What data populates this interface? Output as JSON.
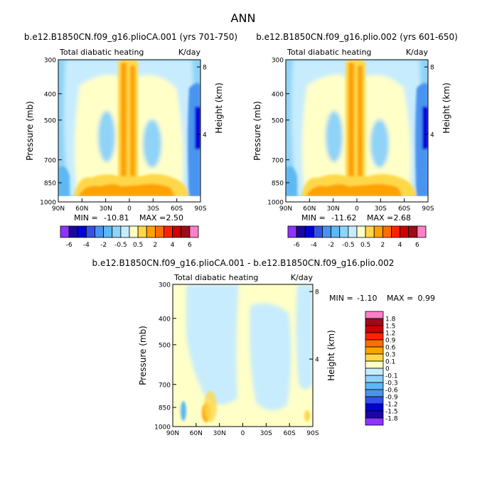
{
  "figure": {
    "title": "ANN"
  },
  "colors": {
    "levels_main": [
      "#8f33ff",
      "#1a06a0",
      "#0000d9",
      "#3452e8",
      "#4a94f0",
      "#5db8f4",
      "#8fd3f8",
      "#c7ecfd",
      "#ffffc8",
      "#ffd84a",
      "#ffa200",
      "#ff6e00",
      "#ff2200",
      "#cf0000",
      "#9b0c19",
      "#ff7fc8"
    ],
    "levels_diff": [
      "#8f33ff",
      "#1a06a0",
      "#0000d9",
      "#3452e8",
      "#4a94f0",
      "#5db8f4",
      "#8fd3f8",
      "#c7ecfd",
      "#ffffc8",
      "#ffd84a",
      "#ffa200",
      "#ff6e00",
      "#ff2200",
      "#cf0000",
      "#9b0c19",
      "#ff7fc8"
    ]
  },
  "chart_data": [
    {
      "type": "heatmap",
      "title": "b.e12.B1850CN.f09_g16.plioCA.001 (yrs 701-750)",
      "subtitle_left": "Total diabatic heating",
      "subtitle_right": "K/day",
      "xlabel": "",
      "ylabel": "Pressure (mb)",
      "ylabel_right": "Height (km)",
      "x_ticks": [
        "90N",
        "60N",
        "30N",
        "0",
        "30S",
        "60S",
        "90S"
      ],
      "y_ticks": [
        "300",
        "400",
        "500",
        "700",
        "850",
        "1000"
      ],
      "y_right_ticks": [
        "8",
        "4"
      ],
      "min": -10.81,
      "max": 2.5,
      "min_label": "MIN =",
      "min_value": "-10.81",
      "max_label": "MAX =",
      "max_value": "2.50",
      "legend_labels": [
        "-6",
        "-4",
        "-2",
        "-0.5",
        "0.5",
        "2",
        "4",
        "6"
      ]
    },
    {
      "type": "heatmap",
      "title": "b.e12.B1850CN.f09_g16.plio.002 (yrs 601-650)",
      "subtitle_left": "Total diabatic heating",
      "subtitle_right": "K/day",
      "xlabel": "",
      "ylabel": "Pressure (mb)",
      "ylabel_right": "Height (km)",
      "x_ticks": [
        "90N",
        "60N",
        "30N",
        "0",
        "30S",
        "60S",
        "90S"
      ],
      "y_ticks": [
        "300",
        "400",
        "500",
        "700",
        "850",
        "1000"
      ],
      "y_right_ticks": [
        "8",
        "4"
      ],
      "min": -11.62,
      "max": 2.68,
      "min_label": "MIN =",
      "min_value": "-11.62",
      "max_label": "MAX =",
      "max_value": "2.68",
      "legend_labels": [
        "-6",
        "-4",
        "-2",
        "-0.5",
        "0.5",
        "2",
        "4",
        "6"
      ]
    },
    {
      "type": "heatmap",
      "title": "b.e12.B1850CN.f09_g16.plioCA.001 - b.e12.B1850CN.f09_g16.plio.002",
      "subtitle_left": "Total diabatic heating",
      "subtitle_right": "K/day",
      "xlabel": "",
      "ylabel": "Pressure (mb)",
      "ylabel_right": "Height (km)",
      "x_ticks": [
        "90N",
        "60N",
        "30N",
        "0",
        "30S",
        "60S",
        "90S"
      ],
      "y_ticks": [
        "300",
        "400",
        "500",
        "700",
        "850",
        "1000"
      ],
      "y_right_ticks": [
        "8",
        "4"
      ],
      "min": -1.1,
      "max": 0.99,
      "min_label": "MIN =",
      "min_value": "-1.10",
      "max_label": "MAX =",
      "max_value": "0.99",
      "legend_labels": [
        "1.8",
        "1.5",
        "1.2",
        "0.9",
        "0.6",
        "0.3",
        "0.1",
        "0",
        "-0.1",
        "-0.3",
        "-0.6",
        "-0.9",
        "-1.2",
        "-1.5",
        "-1.8"
      ]
    }
  ]
}
